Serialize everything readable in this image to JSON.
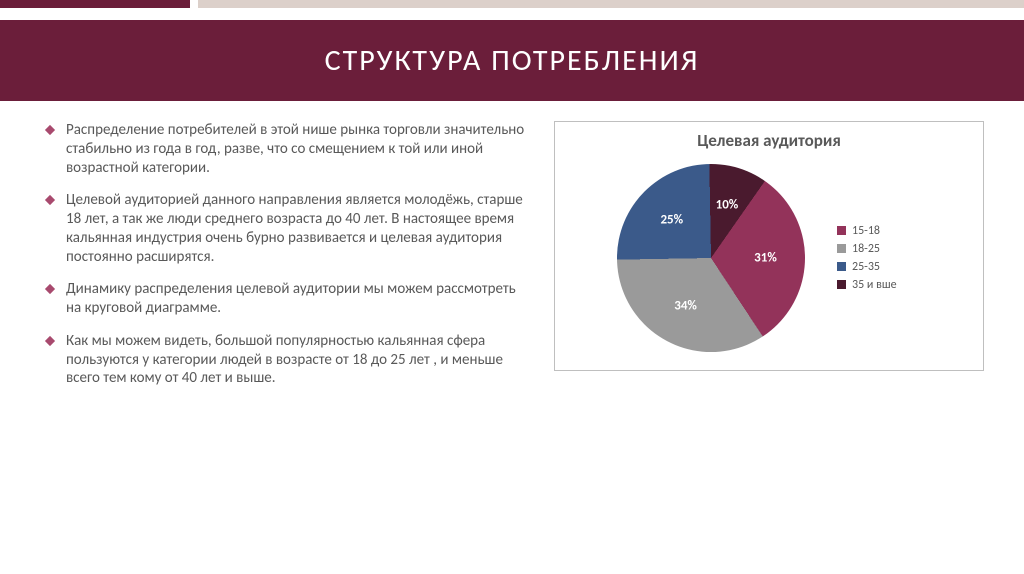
{
  "layout": {
    "accent_dark": "#6b1e3a",
    "accent_light": "#dcd0ca",
    "accent_dark_width": 190,
    "accent_total_width": 1024
  },
  "title": "СТРУКТУРА ПОТРЕБЛЕНИЯ",
  "bullets": [
    "Распределение  потребителей в этой нише рынка торговли значительно стабильно из года в год, разве, что со смещением к той или иной возрастной категории.",
    "Целевой аудиторией данного направления является молодёжь, старше 18 лет, а так же люди среднего возраста до 40 лет. В настоящее время кальянная индустрия очень бурно развивается и целевая аудитория постоянно расширятся.",
    "Динамику распределения целевой аудитории мы можем рассмотреть на круговой диаграмме.",
    "Как мы можем видеть, большой популярностью кальянная сфера пользуются у категории людей в возрасте от 18 до 25 лет , и меньше всего тем кому от 40 лет и выше."
  ],
  "chart": {
    "type": "pie",
    "title": "Целевая аудитория",
    "title_fontsize": 17,
    "label_fontsize": 13,
    "label_color": "#ffffff",
    "background_color": "#ffffff",
    "border_color": "#bfbfbf",
    "start_angle_deg": 35,
    "slices": [
      {
        "label": "15-18",
        "value": 31,
        "color": "#93335a",
        "display": "31%"
      },
      {
        "label": "18-25",
        "value": 34,
        "color": "#9a9a9a",
        "display": "34%"
      },
      {
        "label": "25-35",
        "value": 25,
        "color": "#3b5a8a",
        "display": "25%"
      },
      {
        "label": "35 и вше",
        "value": 10,
        "color": "#4a1a2e",
        "display": "10%"
      }
    ],
    "legend_fontsize": 12,
    "legend_color": "#595959"
  }
}
